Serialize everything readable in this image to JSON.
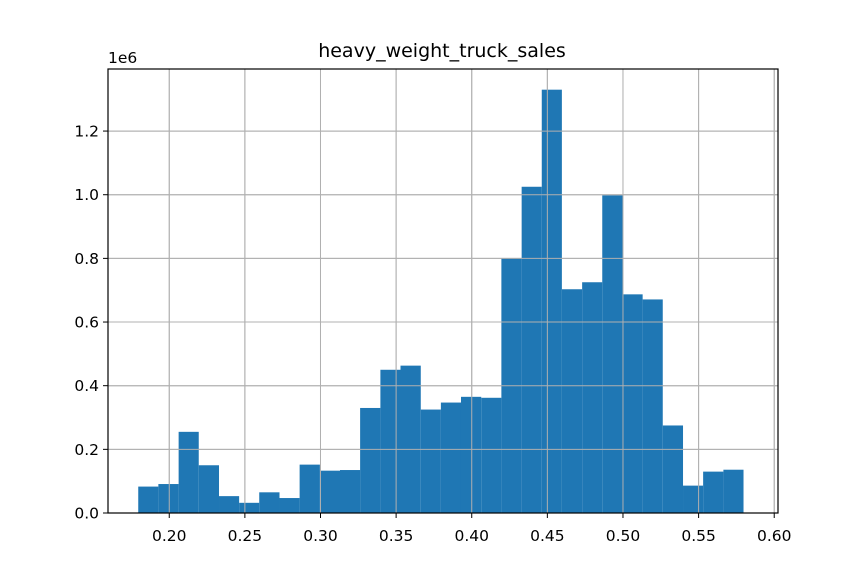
{
  "chart_data": {
    "type": "bar",
    "title": "heavy_weight_truck_sales",
    "offset_label": "1e6",
    "xlabel": "",
    "ylabel": "",
    "xlim": [
      0.1595,
      0.6025
    ],
    "ylim": [
      0,
      1.395
    ],
    "grid": true,
    "bar_color": "#1f77b4",
    "xticks": [
      0.2,
      0.25,
      0.3,
      0.35,
      0.4,
      0.45,
      0.5,
      0.55,
      0.6
    ],
    "xtick_labels": [
      "0.20",
      "0.25",
      "0.30",
      "0.35",
      "0.40",
      "0.45",
      "0.50",
      "0.55",
      "0.60"
    ],
    "yticks": [
      0.0,
      0.2,
      0.4,
      0.6,
      0.8,
      1.0,
      1.2
    ],
    "ytick_labels": [
      "0.0",
      "0.2",
      "0.4",
      "0.6",
      "0.8",
      "1.0",
      "1.2"
    ],
    "bins": [
      {
        "x0": 0.1795,
        "x1": 0.1928,
        "value": 0.083
      },
      {
        "x0": 0.1928,
        "x1": 0.2062,
        "value": 0.091
      },
      {
        "x0": 0.2062,
        "x1": 0.2195,
        "value": 0.255
      },
      {
        "x0": 0.2195,
        "x1": 0.2329,
        "value": 0.15
      },
      {
        "x0": 0.2329,
        "x1": 0.2462,
        "value": 0.053
      },
      {
        "x0": 0.2462,
        "x1": 0.2595,
        "value": 0.032
      },
      {
        "x0": 0.2595,
        "x1": 0.2729,
        "value": 0.065
      },
      {
        "x0": 0.2729,
        "x1": 0.2862,
        "value": 0.047
      },
      {
        "x0": 0.2862,
        "x1": 0.2996,
        "value": 0.152
      },
      {
        "x0": 0.2996,
        "x1": 0.3129,
        "value": 0.133
      },
      {
        "x0": 0.3129,
        "x1": 0.3262,
        "value": 0.135
      },
      {
        "x0": 0.3262,
        "x1": 0.3396,
        "value": 0.33
      },
      {
        "x0": 0.3396,
        "x1": 0.3529,
        "value": 0.45
      },
      {
        "x0": 0.3529,
        "x1": 0.3663,
        "value": 0.463
      },
      {
        "x0": 0.3663,
        "x1": 0.3796,
        "value": 0.325
      },
      {
        "x0": 0.3796,
        "x1": 0.3929,
        "value": 0.347
      },
      {
        "x0": 0.3929,
        "x1": 0.4063,
        "value": 0.365
      },
      {
        "x0": 0.4063,
        "x1": 0.4196,
        "value": 0.362
      },
      {
        "x0": 0.4196,
        "x1": 0.433,
        "value": 0.8
      },
      {
        "x0": 0.433,
        "x1": 0.4463,
        "value": 1.025
      },
      {
        "x0": 0.4463,
        "x1": 0.4596,
        "value": 1.33
      },
      {
        "x0": 0.4596,
        "x1": 0.473,
        "value": 0.703
      },
      {
        "x0": 0.473,
        "x1": 0.4863,
        "value": 0.725
      },
      {
        "x0": 0.4863,
        "x1": 0.4997,
        "value": 0.998
      },
      {
        "x0": 0.4997,
        "x1": 0.513,
        "value": 0.687
      },
      {
        "x0": 0.513,
        "x1": 0.5263,
        "value": 0.671
      },
      {
        "x0": 0.5263,
        "x1": 0.5397,
        "value": 0.275
      },
      {
        "x0": 0.5397,
        "x1": 0.553,
        "value": 0.086
      },
      {
        "x0": 0.553,
        "x1": 0.5664,
        "value": 0.13
      },
      {
        "x0": 0.5664,
        "x1": 0.5797,
        "value": 0.136
      }
    ]
  }
}
